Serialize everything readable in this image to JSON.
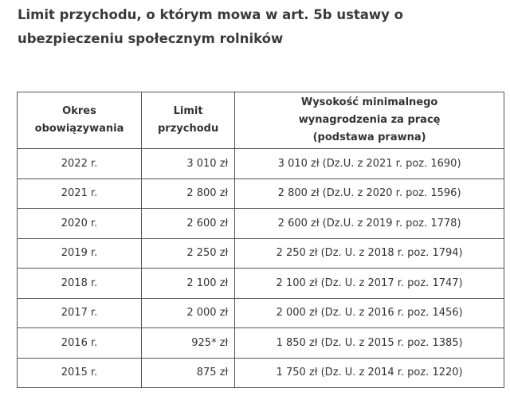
{
  "title": "Limit przychodu, o którym mowa w art. 5b ustawy o ubezpieczeniu społecznym rolników",
  "table": {
    "headers": [
      "Okres obowiązywania",
      "Limit przychodu",
      "Wysokość minimalnego wynagrodzenia za pracę (podstawa prawna)"
    ],
    "rows": [
      [
        "2022 r.",
        "3 010 zł",
        "3 010 zł (Dz.U. z 2021 r. poz. 1690)"
      ],
      [
        "2021 r.",
        "2 800 zł",
        "2 800 zł (Dz.U. z 2020 r. poz. 1596)"
      ],
      [
        "2020 r.",
        "2 600 zł",
        "2 600 zł (Dz.U. z 2019 r. poz. 1778)"
      ],
      [
        "2019 r.",
        "2 250 zł",
        "2 250 zł (Dz. U. z 2018 r. poz. 1794)"
      ],
      [
        "2018 r.",
        "2 100 zł",
        "2 100 zł (Dz. U. z 2017 r. poz. 1747)"
      ],
      [
        "2017 r.",
        "2 000 zł",
        "2 000 zł (Dz. U. z 2016 r. poz. 1456)"
      ],
      [
        "2016 r.",
        "925* zł",
        "1 850 zł (Dz. U. z 2015 r. poz. 1385)"
      ],
      [
        "2015 r.",
        "875 zł",
        "1 750 zł (Dz. U. z 2014 r. poz. 1220)"
      ]
    ]
  }
}
